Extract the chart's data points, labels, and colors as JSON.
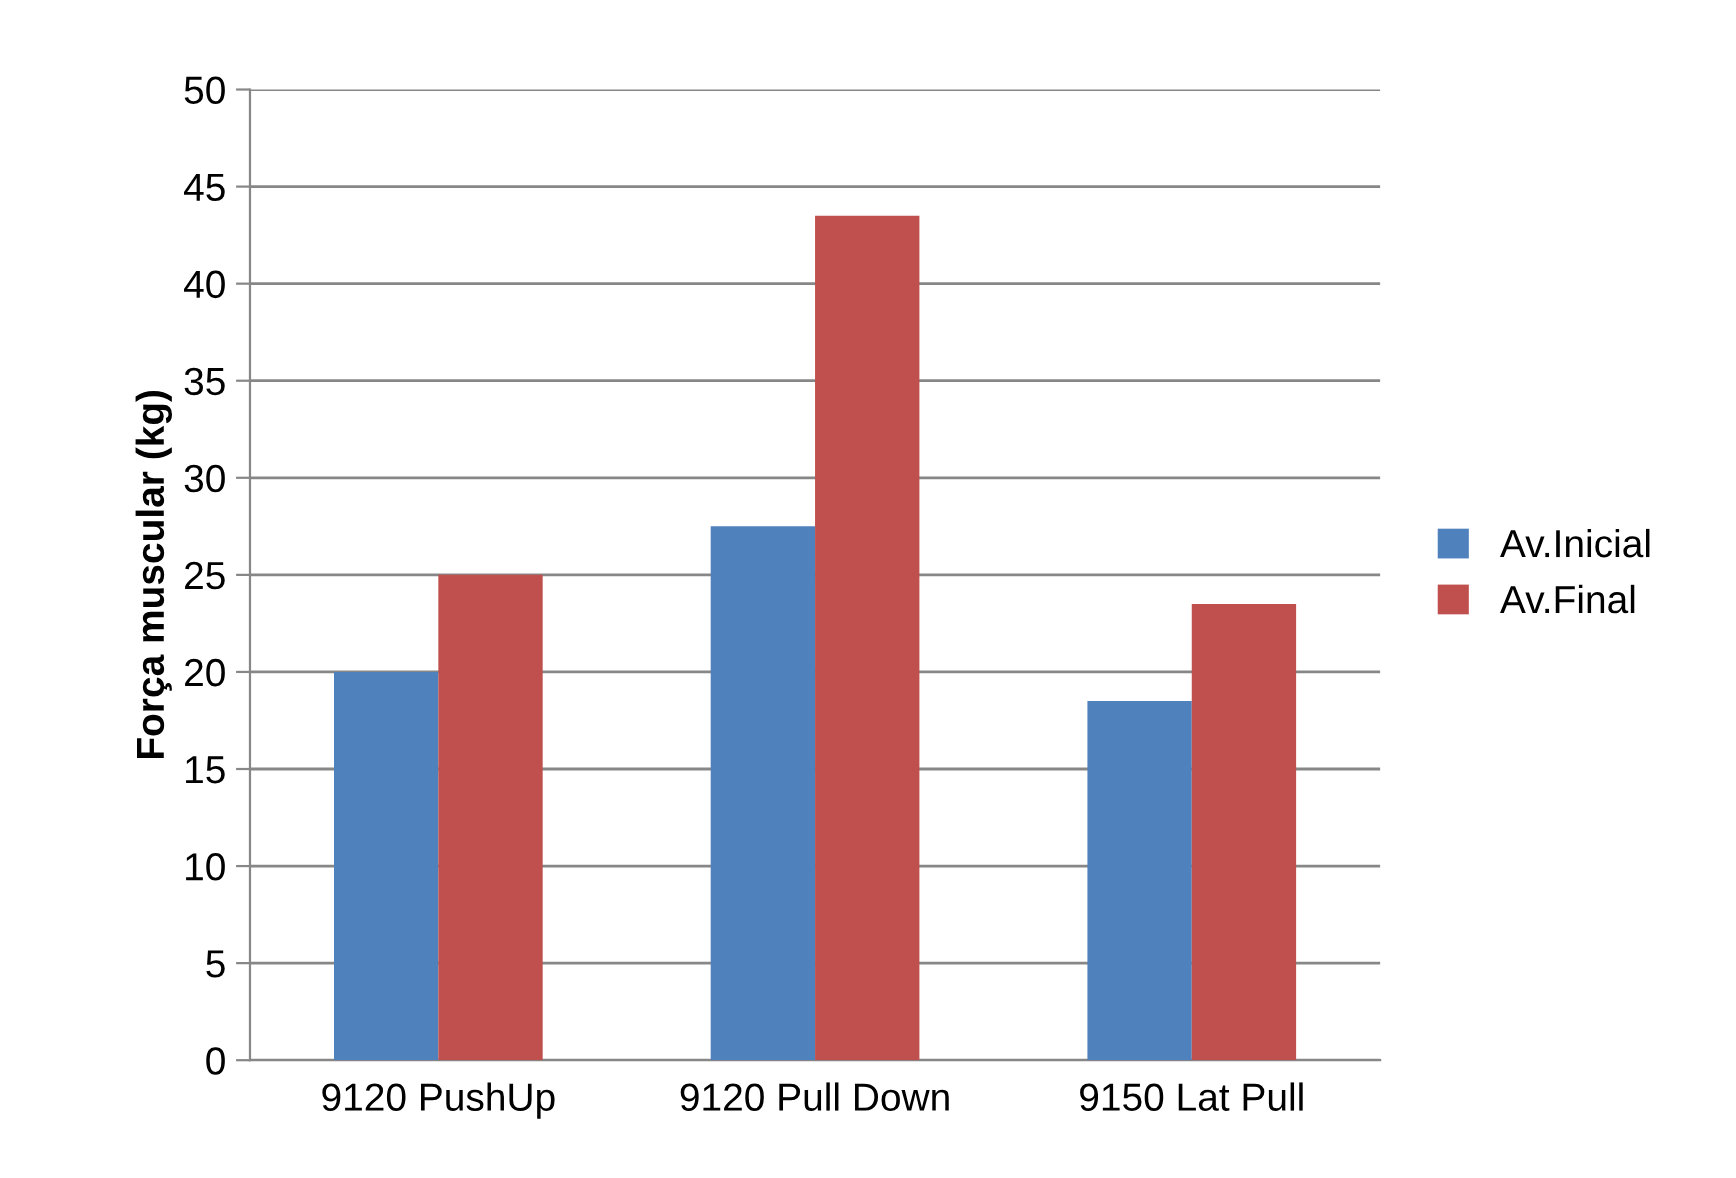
{
  "chart_data": {
    "type": "bar",
    "ylabel": "Força muscular (kg)",
    "categories": [
      "9120 PushUp",
      "9120 Pull Down",
      "9150 Lat Pull"
    ],
    "series": [
      {
        "name": "Av.Inicial",
        "color": "#4f81bd",
        "values": [
          20,
          27.5,
          18.5
        ]
      },
      {
        "name": "Av.Final",
        "color": "#c0504d",
        "values": [
          25,
          43.5,
          23.5
        ]
      }
    ],
    "ylim": [
      0,
      50
    ],
    "yticks": [
      0,
      5,
      10,
      15,
      20,
      25,
      30,
      35,
      40,
      45,
      50
    ],
    "grid": "y",
    "legend": "right"
  }
}
